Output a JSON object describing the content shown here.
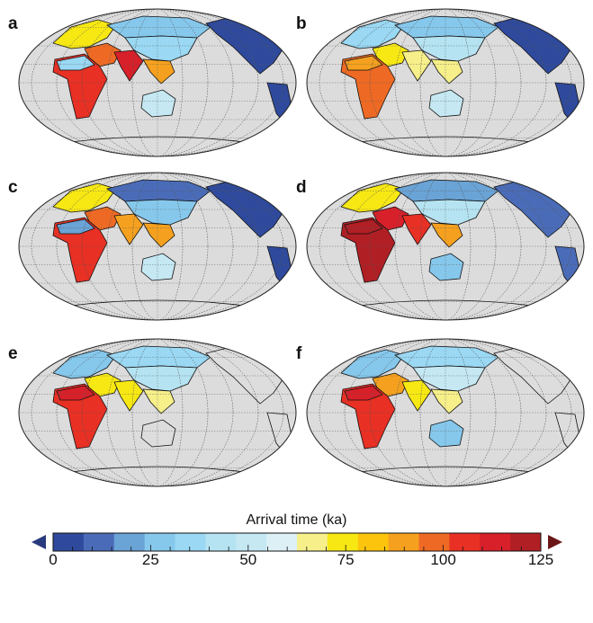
{
  "panels": [
    {
      "label": "a",
      "colors": {
        "africa": "#e83024",
        "sahara": "#9ad8f3",
        "mideast": "#ee6a24",
        "india": "#d8202a",
        "europe": "#f7e814",
        "nasia": "#86c8ec",
        "easia": "#9ad8f3",
        "seasia": "#f5a11f",
        "australia": "#c5e8f3",
        "americas": "#2f4a9c"
      }
    },
    {
      "label": "b",
      "colors": {
        "africa": "#ee6a24",
        "sahara": "#f5a11f",
        "mideast": "#f7e814",
        "india": "#f6ef8a",
        "europe": "#9ad8f3",
        "nasia": "#86c8ec",
        "easia": "#b5e3f1",
        "seasia": "#f6ef8a",
        "australia": "#c5e8f3",
        "americas": "#2f4a9c"
      }
    },
    {
      "label": "c",
      "colors": {
        "africa": "#e83024",
        "sahara": "#6aa3d6",
        "mideast": "#ee6a24",
        "india": "#f5a11f",
        "europe": "#f7e814",
        "nasia": "#4a6cb8",
        "easia": "#86c8ec",
        "seasia": "#f5a11f",
        "australia": "#c5e8f3",
        "americas": "#2f4a9c"
      }
    },
    {
      "label": "d",
      "colors": {
        "africa": "#b01f24",
        "sahara": "#b01f24",
        "mideast": "#d8202a",
        "india": "#e83024",
        "europe": "#f7e814",
        "nasia": "#6aa3d6",
        "easia": "#b5e3f1",
        "seasia": "#f5a11f",
        "australia": "#86c8ec",
        "americas": "#4a6cb8"
      }
    },
    {
      "label": "e",
      "colors": {
        "africa": "#e83024",
        "sahara": "#d8202a",
        "mideast": "#f7e814",
        "india": "#f7e814",
        "europe": "#86c8ec",
        "nasia": "#9ad8f3",
        "easia": "#b5e3f1",
        "seasia": "#f6ef8a",
        "australia": "#dddddd",
        "americas": "#dddddd"
      }
    },
    {
      "label": "f",
      "colors": {
        "africa": "#e83024",
        "sahara": "#d8202a",
        "mideast": "#f5a11f",
        "india": "#f7e814",
        "europe": "#86c8ec",
        "nasia": "#9ad8f3",
        "easia": "#c5e8f3",
        "seasia": "#f6ef8a",
        "australia": "#86c8ec",
        "americas": "#dddddd"
      }
    }
  ],
  "colorbar": {
    "title": "Arrival time (ka)",
    "min": 0,
    "max": 125,
    "ticks": [
      "0",
      "25",
      "50",
      "75",
      "100",
      "125"
    ],
    "colors": [
      "#2f4a9c",
      "#4a6cb8",
      "#6aa3d6",
      "#86c8ec",
      "#9ad8f3",
      "#b5e3f1",
      "#c5e8f3",
      "#ddf0f6",
      "#f6ef8a",
      "#f7e814",
      "#fcc40c",
      "#f5a11f",
      "#ee6a24",
      "#e83024",
      "#d8202a",
      "#b01f24"
    ],
    "under_color": "#2a3a7e",
    "over_color": "#6b1616"
  }
}
